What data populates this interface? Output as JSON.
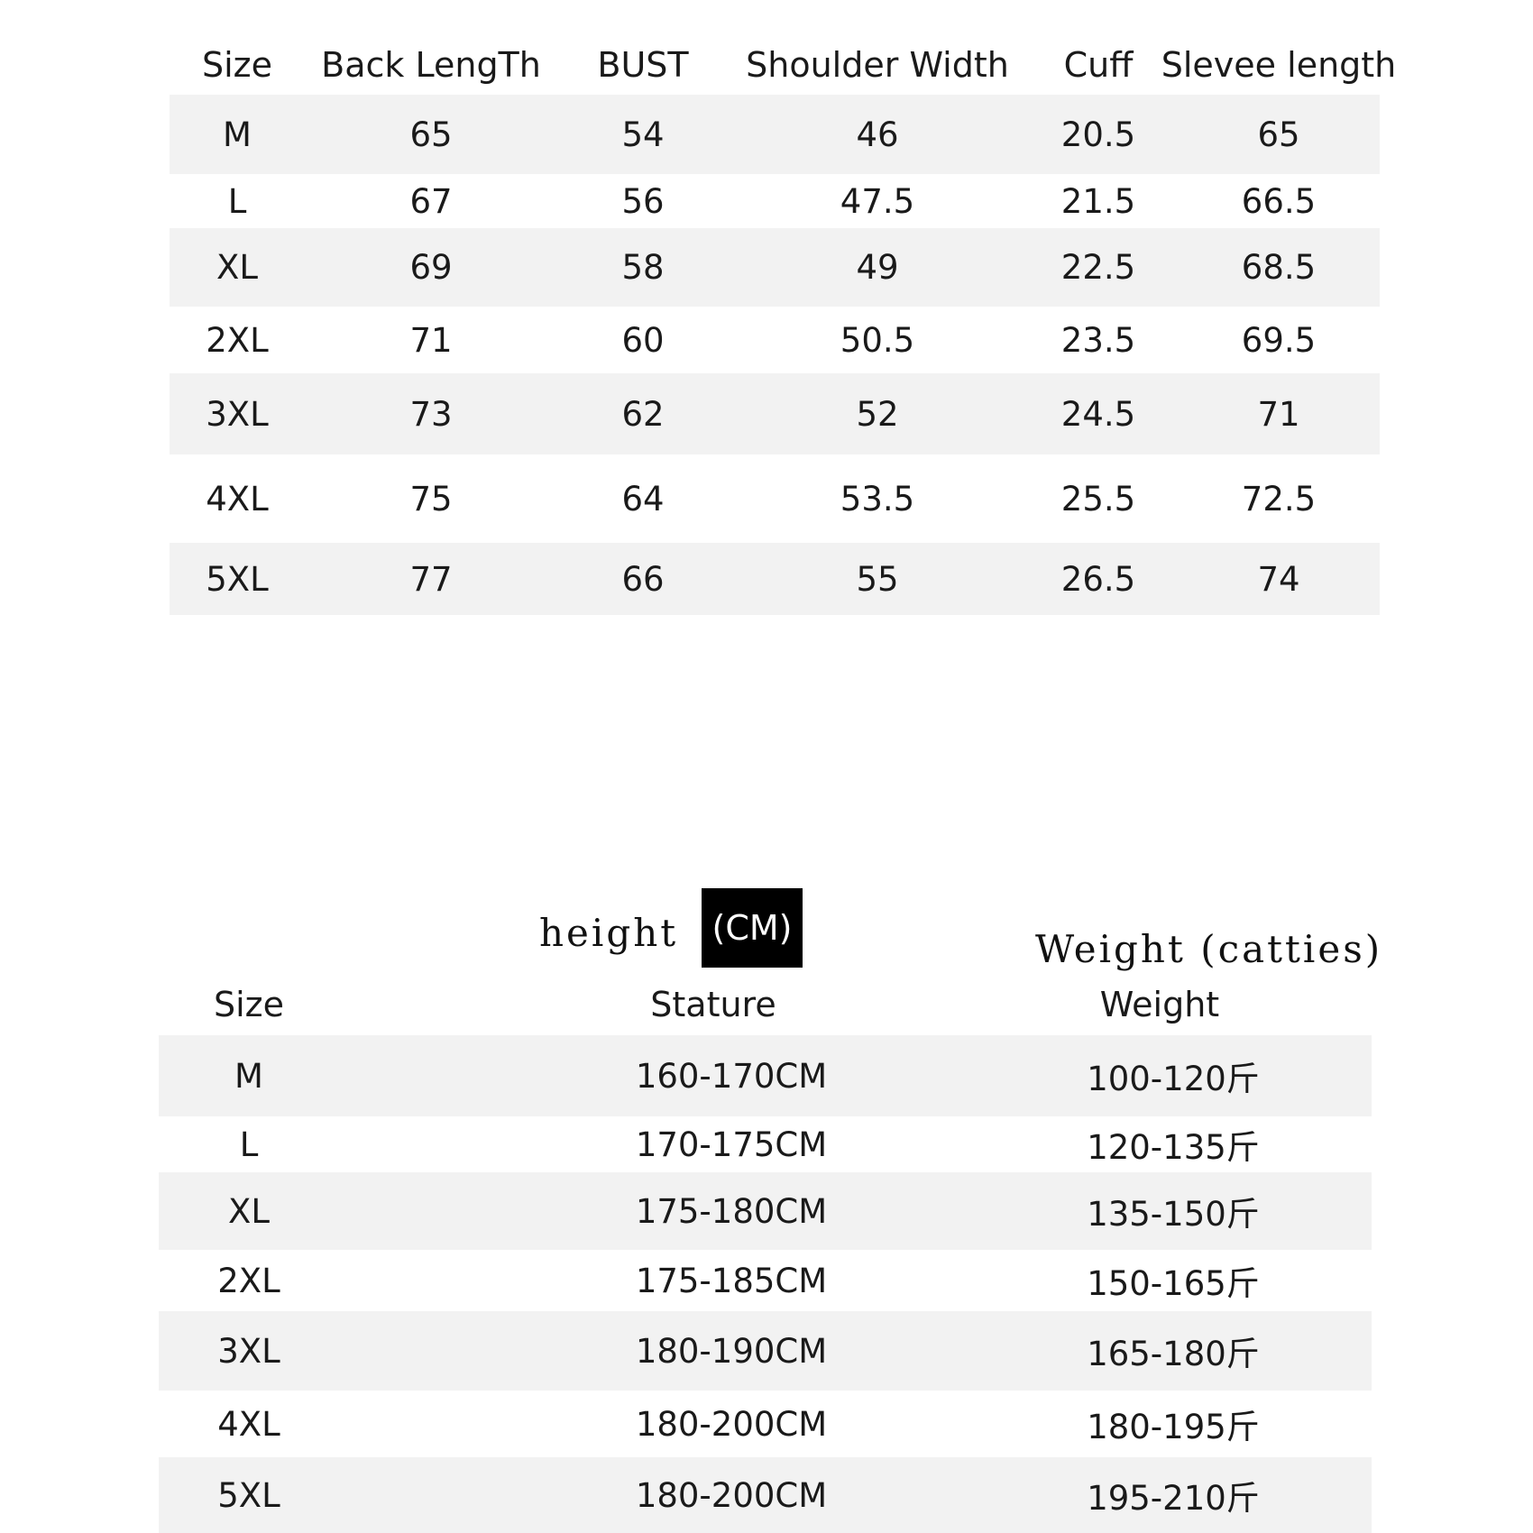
{
  "size_table": {
    "headers": [
      "Size",
      "Back LengTh",
      "BUST",
      "Shoulder Width",
      "Cuff",
      "Slevee length"
    ],
    "rows": [
      [
        "M",
        "65",
        "54",
        "46",
        "20.5",
        "65"
      ],
      [
        "L",
        "67",
        "56",
        "47.5",
        "21.5",
        "66.5"
      ],
      [
        "XL",
        "69",
        "58",
        "49",
        "22.5",
        "68.5"
      ],
      [
        "2XL",
        "71",
        "60",
        "50.5",
        "23.5",
        "69.5"
      ],
      [
        "3XL",
        "73",
        "62",
        "52",
        "24.5",
        "71"
      ],
      [
        "4XL",
        "75",
        "64",
        "53.5",
        "25.5",
        "72.5"
      ],
      [
        "5XL",
        "77",
        "66",
        "55",
        "26.5",
        "74"
      ]
    ]
  },
  "fit_table": {
    "height_label": "height",
    "cm_label": "(CM)",
    "weight_label": "Weight (catties)",
    "headers": [
      "Size",
      "Stature",
      "Weight"
    ],
    "rows": [
      [
        "M",
        "160-170CM",
        "100-120斤"
      ],
      [
        "L",
        "170-175CM",
        "120-135斤"
      ],
      [
        "XL",
        "175-180CM",
        "135-150斤"
      ],
      [
        "2XL",
        "175-185CM",
        "150-165斤"
      ],
      [
        "3XL",
        "180-190CM",
        "165-180斤"
      ],
      [
        "4XL",
        "180-200CM",
        "180-195斤"
      ],
      [
        "5XL",
        "180-200CM",
        "195-210斤"
      ]
    ]
  }
}
